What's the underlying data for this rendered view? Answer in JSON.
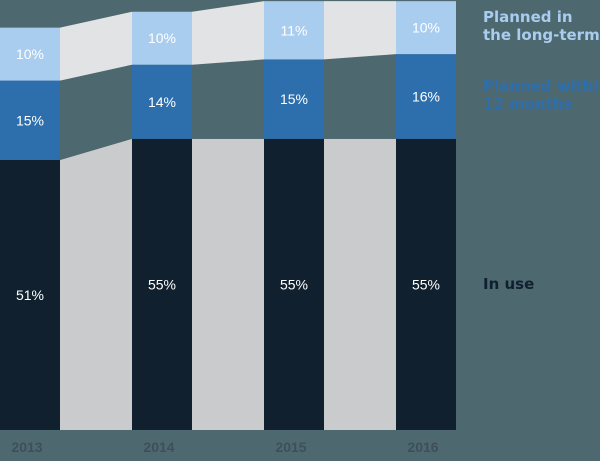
{
  "chart_data": {
    "type": "bar",
    "stacked": true,
    "title": "",
    "xlabel": "",
    "ylabel": "",
    "categories": [
      "2013",
      "2014",
      "2015",
      "2016"
    ],
    "series": [
      {
        "name": "In use",
        "color": "#10202f",
        "values": [
          51,
          55,
          55,
          55
        ],
        "labels": [
          "51%",
          "55%",
          "55%",
          "55%"
        ]
      },
      {
        "name": "Planned within 12 months",
        "color": "#2d6fad",
        "values": [
          15,
          14,
          15,
          16
        ],
        "labels": [
          "15%",
          "14%",
          "15%",
          "16%"
        ]
      },
      {
        "name": "Planned in the long-term",
        "color": "#a9cdef",
        "values": [
          10,
          10,
          11,
          10
        ],
        "labels": [
          "10%",
          "10%",
          "11%",
          "10%"
        ]
      }
    ],
    "connector_colors": {
      "In use": "#cacbcd",
      "Planned within 12 months": "#4e6870",
      "Planned in the long-term": "#e2e3e5"
    },
    "legend_position": "right",
    "grid": false
  },
  "legend": {
    "long_term": [
      "Planned in",
      "the long-term"
    ],
    "within_12": [
      "Planned within",
      "12 months"
    ],
    "in_use": "In use"
  },
  "colors": {
    "background": "#4e6870",
    "in_use": "#10202f",
    "within_12": "#2d6fad",
    "long_term": "#a9cdef",
    "legend_long_term": "#a9cdef",
    "legend_within_12": "#2d6fad",
    "legend_in_use": "#10202f"
  }
}
